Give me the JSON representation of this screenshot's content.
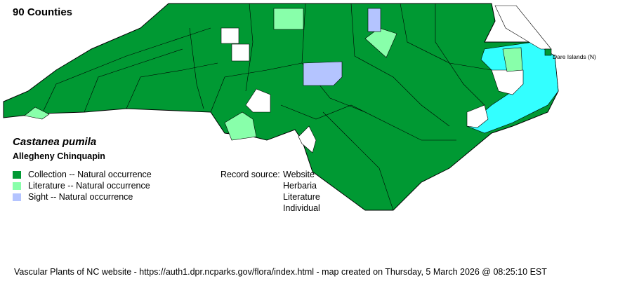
{
  "header": {
    "county_count": "90 Counties"
  },
  "species": {
    "scientific_name": "Castanea pumila",
    "common_name": "Allegheny Chinquapin"
  },
  "legend": [
    {
      "label": "Collection -- Natural occurrence",
      "color": "#009933"
    },
    {
      "label": "Literature -- Natural occurrence",
      "color": "#88FFAA"
    },
    {
      "label": "Sight -- Natural occurrence",
      "color": "#B4C4FF"
    }
  ],
  "record_source": {
    "label": "Record source:",
    "sources": [
      "Website",
      "Herbaria",
      "Literature",
      "Individual"
    ]
  },
  "map": {
    "annotation": "Dare Islands (N)",
    "water_color": "#33FFFF",
    "no_record_color": "#FFFFFF"
  },
  "footer": "Vascular Plants of NC website - https://auth1.dpr.ncparks.gov/flora/index.html - map created on Thursday, 5 March 2026 @ 08:25:10 EST"
}
